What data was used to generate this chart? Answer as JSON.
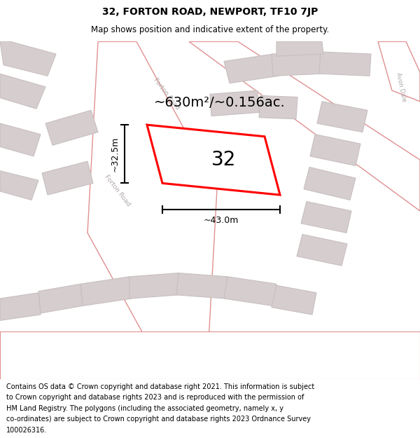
{
  "title": "32, FORTON ROAD, NEWPORT, TF10 7JP",
  "subtitle": "Map shows position and indicative extent of the property.",
  "footer_lines": [
    "Contains OS data © Crown copyright and database right 2021. This information is subject",
    "to Crown copyright and database rights 2023 and is reproduced with the permission of",
    "HM Land Registry. The polygons (including the associated geometry, namely x, y",
    "co-ordinates) are subject to Crown copyright and database rights 2023 Ordnance Survey",
    "100026316."
  ],
  "area_label": "~630m²/~0.156ac.",
  "width_label": "~43.0m",
  "height_label": "~32.5m",
  "property_number": "32",
  "bg_color": "#f2eded",
  "road_fill": "#ffffff",
  "building_color": "#d6cece",
  "building_edge_color": "#c8c0c0",
  "road_line_color": "#e09090",
  "highlight_color": "#ff0000",
  "title_fontsize": 10,
  "subtitle_fontsize": 8.5,
  "footer_fontsize": 7.0,
  "area_fontsize": 14,
  "number_fontsize": 20,
  "dim_fontsize": 9,
  "road_label_fontsize": 6.5,
  "road_label_color": "#b0a8a8"
}
